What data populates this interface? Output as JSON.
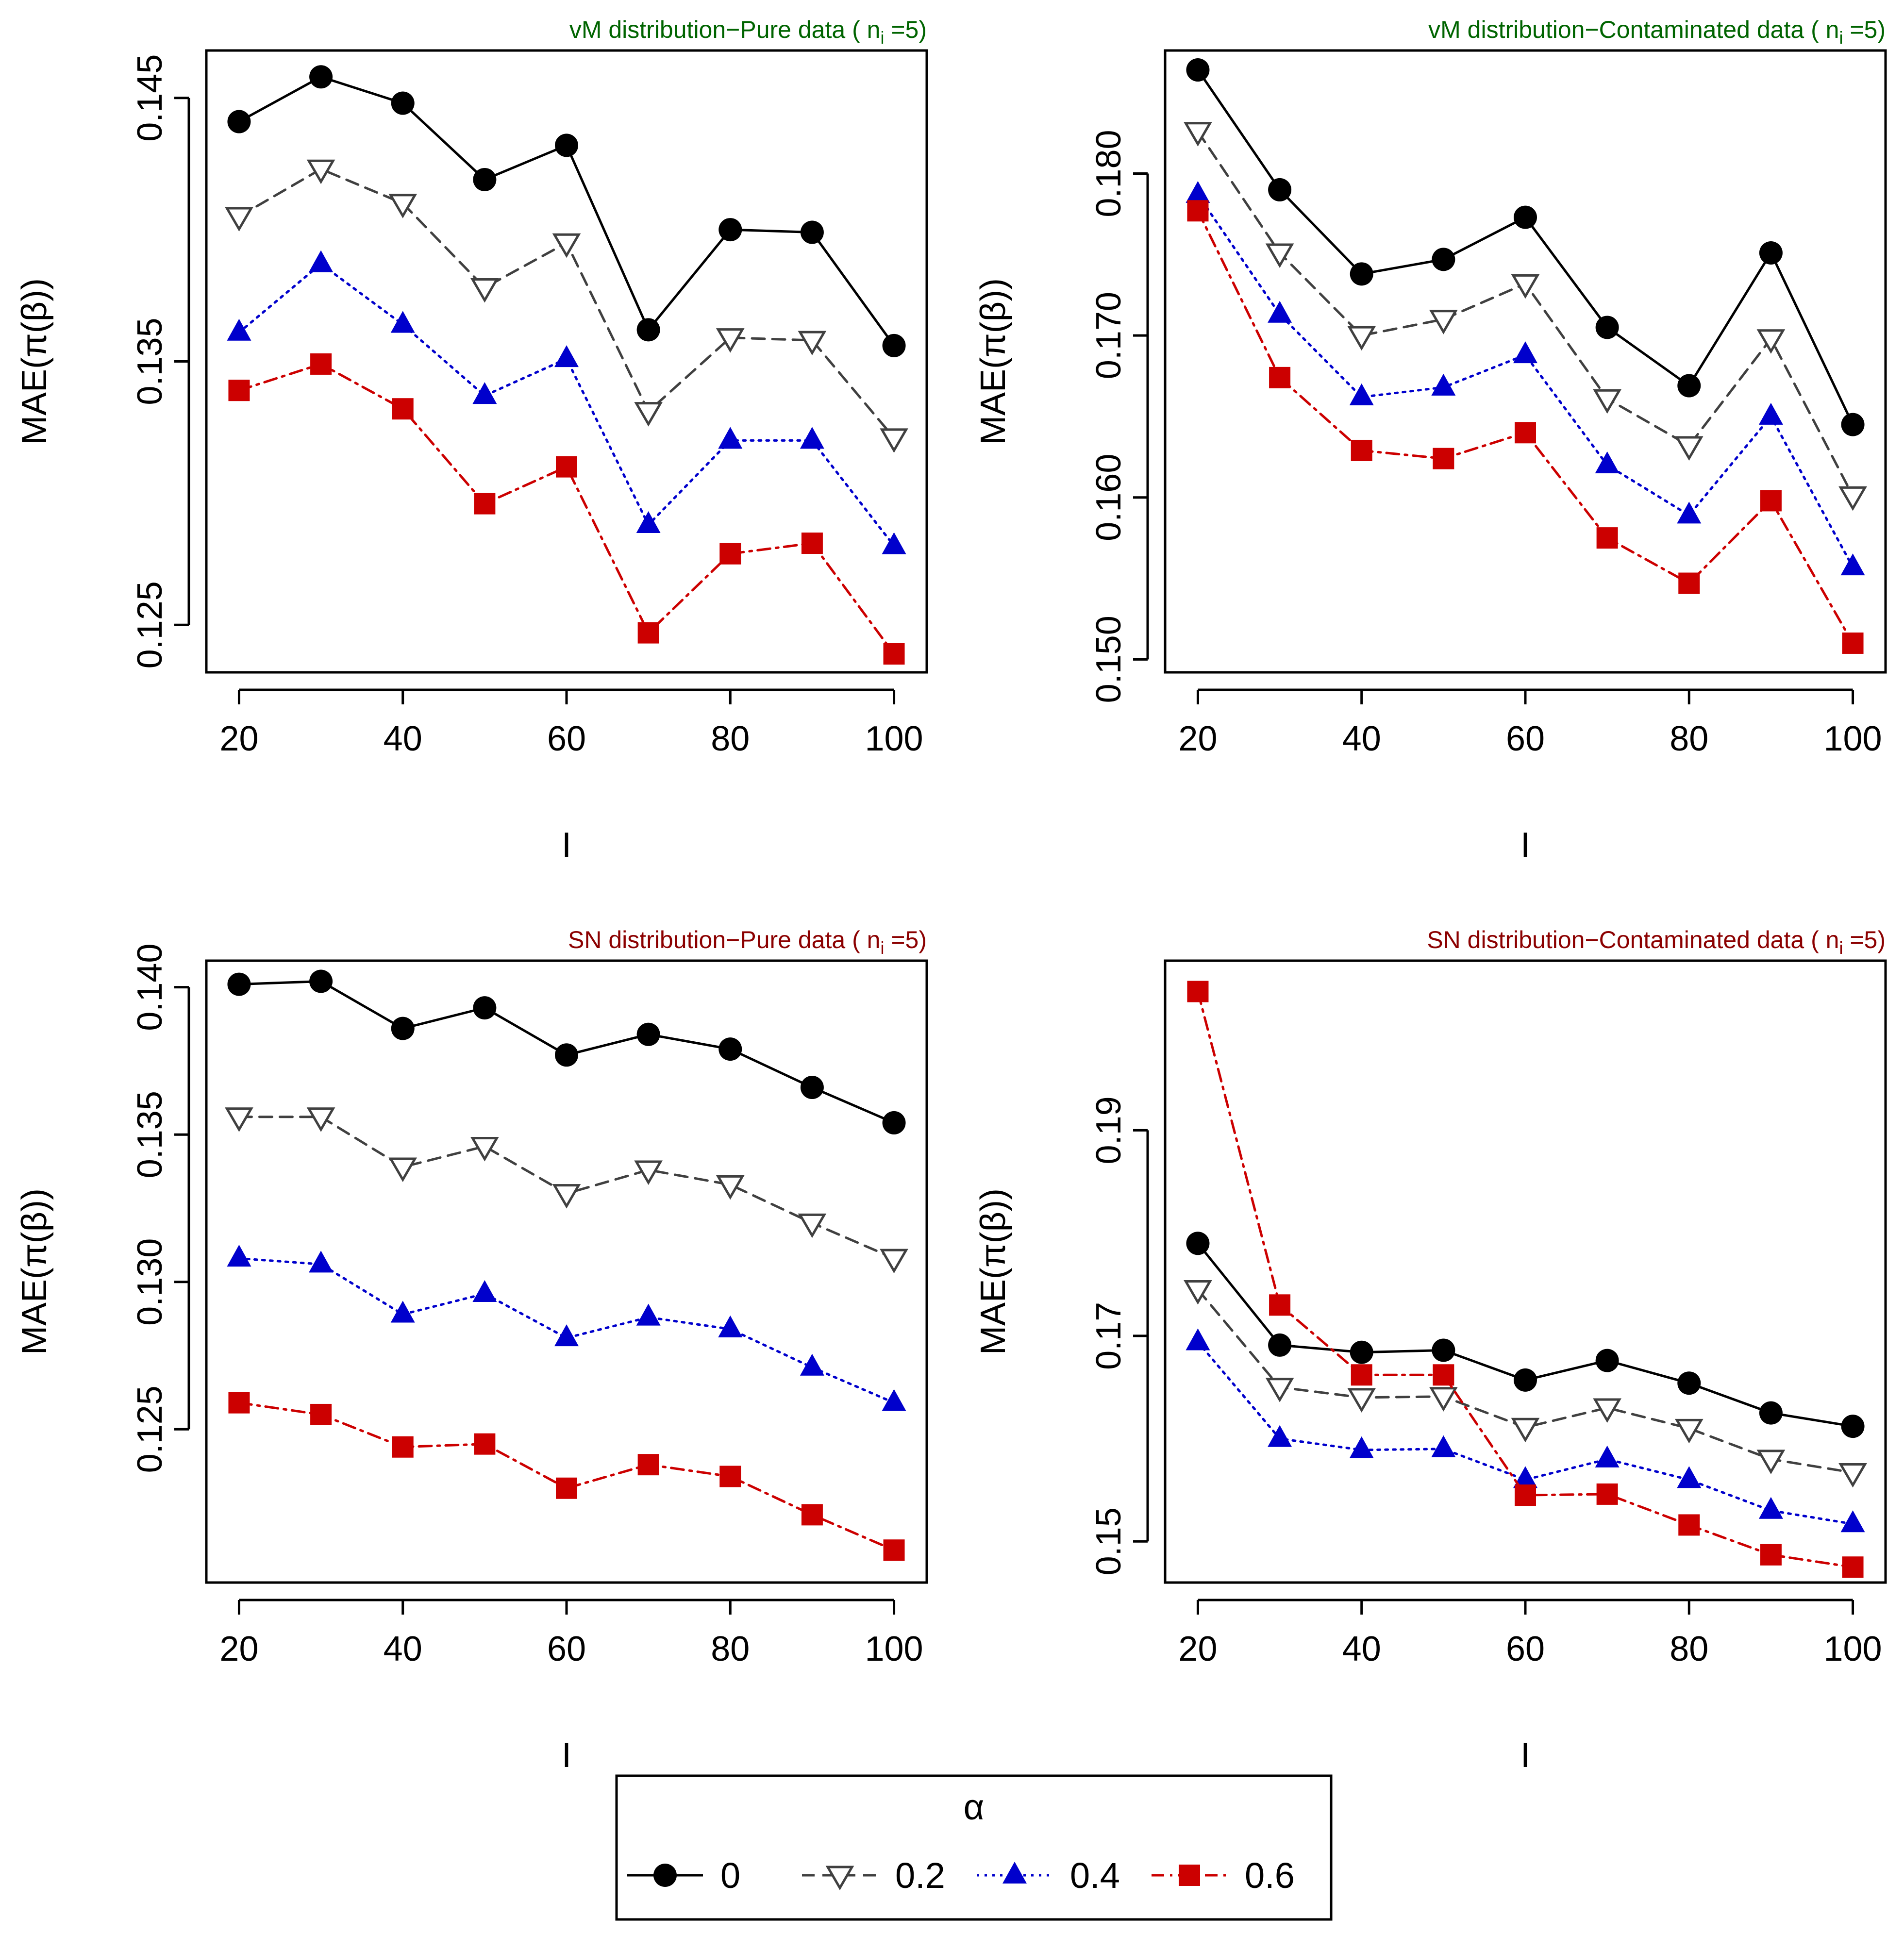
{
  "colors": {
    "series": [
      "#000000",
      "#404040",
      "#0000cc",
      "#cc0000"
    ],
    "title_vm": "#006400",
    "title_sn": "#8b0000"
  },
  "legend": {
    "title": "α",
    "labels": [
      "0",
      "0.2",
      "0.4",
      "0.6"
    ],
    "markers": [
      "circle",
      "triangle-down-open",
      "triangle-up",
      "square"
    ],
    "line_styles": [
      "solid",
      "dashed",
      "dotted",
      "dashdot"
    ]
  },
  "chart_data": [
    {
      "type": "line",
      "title_main": "vM distribution−Pure data ( n",
      "title_sub": "i",
      "title_tail": " =5)",
      "title_color_key": "title_vm",
      "xlabel": "I",
      "ylabel": "MAE(π(β))",
      "x": [
        20,
        30,
        40,
        50,
        60,
        70,
        80,
        90,
        100
      ],
      "xticks": [
        20,
        40,
        60,
        80,
        100
      ],
      "xlim": [
        16,
        104
      ],
      "yticks": [
        0.125,
        0.135,
        0.145
      ],
      "ytick_labels": [
        "0.125",
        "0.135",
        "0.145"
      ],
      "ylim": [
        0.1232,
        0.1468
      ],
      "series": [
        {
          "name": "0",
          "values": [
            0.1441,
            0.1458,
            0.1448,
            0.1419,
            0.1432,
            0.1362,
            0.14,
            0.1399,
            0.1356
          ]
        },
        {
          "name": "0.2",
          "values": [
            0.1405,
            0.1423,
            0.141,
            0.1378,
            0.1395,
            0.1331,
            0.1359,
            0.1358,
            0.1321
          ]
        },
        {
          "name": "0.4",
          "values": [
            0.1361,
            0.1387,
            0.1364,
            0.1337,
            0.1351,
            0.1288,
            0.132,
            0.132,
            0.128
          ]
        },
        {
          "name": "0.6",
          "values": [
            0.1339,
            0.1349,
            0.1332,
            0.1296,
            0.131,
            0.1247,
            0.1277,
            0.1281,
            0.1239
          ]
        }
      ]
    },
    {
      "type": "line",
      "title_main": "vM distribution−Contaminated data ( n",
      "title_sub": "i",
      "title_tail": " =5)",
      "title_color_key": "title_vm",
      "xlabel": "I",
      "ylabel": "MAE(π(β))",
      "x": [
        20,
        30,
        40,
        50,
        60,
        70,
        80,
        90,
        100
      ],
      "xticks": [
        20,
        40,
        60,
        80,
        100
      ],
      "xlim": [
        16,
        104
      ],
      "yticks": [
        0.15,
        0.16,
        0.17,
        0.18
      ],
      "ytick_labels": [
        "0.150",
        "0.160",
        "0.170",
        "0.180"
      ],
      "ylim": [
        0.1492,
        0.1876
      ],
      "series": [
        {
          "name": "0",
          "values": [
            0.1864,
            0.179,
            0.1738,
            0.1747,
            0.1773,
            0.1705,
            0.1669,
            0.1751,
            0.1645
          ]
        },
        {
          "name": "0.2",
          "values": [
            0.1826,
            0.1751,
            0.17,
            0.171,
            0.1732,
            0.1661,
            0.1632,
            0.1698,
            0.1601
          ]
        },
        {
          "name": "0.4",
          "values": [
            0.1787,
            0.1713,
            0.1662,
            0.1668,
            0.1688,
            0.162,
            0.1589,
            0.165,
            0.1557
          ]
        },
        {
          "name": "0.6",
          "values": [
            0.1777,
            0.1674,
            0.1629,
            0.1624,
            0.164,
            0.1575,
            0.1547,
            0.1598,
            0.151
          ]
        }
      ]
    },
    {
      "type": "line",
      "title_main": "SN distribution−Pure data ( n",
      "title_sub": "i",
      "title_tail": " =5)",
      "title_color_key": "title_sn",
      "xlabel": "I",
      "ylabel": "MAE(π(β))",
      "x": [
        20,
        30,
        40,
        50,
        60,
        70,
        80,
        90,
        100
      ],
      "xticks": [
        20,
        40,
        60,
        80,
        100
      ],
      "xlim": [
        16,
        104
      ],
      "yticks": [
        0.125,
        0.13,
        0.135,
        0.14
      ],
      "ytick_labels": [
        "0.125",
        "0.130",
        "0.135",
        "0.140"
      ],
      "ylim": [
        0.1198,
        0.1409
      ],
      "series": [
        {
          "name": "0",
          "values": [
            0.1401,
            0.1402,
            0.1386,
            0.1393,
            0.1377,
            0.1384,
            0.1379,
            0.1366,
            0.1354
          ]
        },
        {
          "name": "0.2",
          "values": [
            0.1356,
            0.1356,
            0.1339,
            0.1346,
            0.133,
            0.1338,
            0.1333,
            0.132,
            0.1308
          ]
        },
        {
          "name": "0.4",
          "values": [
            0.1308,
            0.1306,
            0.1289,
            0.1296,
            0.1281,
            0.1288,
            0.1284,
            0.1271,
            0.1259
          ]
        },
        {
          "name": "0.6",
          "values": [
            0.1259,
            0.1255,
            0.1244,
            0.1245,
            0.123,
            0.1238,
            0.1234,
            0.1221,
            0.1209
          ]
        }
      ]
    },
    {
      "type": "line",
      "title_main": "SN distribution−Contaminated data ( n",
      "title_sub": "i",
      "title_tail": " =5)",
      "title_color_key": "title_sn",
      "xlabel": "I",
      "ylabel": "MAE(π(β))",
      "x": [
        20,
        30,
        40,
        50,
        60,
        70,
        80,
        90,
        100
      ],
      "xticks": [
        20,
        40,
        60,
        80,
        100
      ],
      "xlim": [
        16,
        104
      ],
      "yticks": [
        0.15,
        0.17,
        0.19
      ],
      "ytick_labels": [
        "0.15",
        "0.17",
        "0.19"
      ],
      "ylim": [
        0.146,
        0.2065
      ],
      "series": [
        {
          "name": "0",
          "values": [
            0.179,
            0.1691,
            0.1684,
            0.1686,
            0.1657,
            0.1676,
            0.1654,
            0.1625,
            0.1612
          ]
        },
        {
          "name": "0.2",
          "values": [
            0.1745,
            0.165,
            0.164,
            0.1641,
            0.1611,
            0.163,
            0.161,
            0.158,
            0.1567
          ]
        },
        {
          "name": "0.4",
          "values": [
            0.1694,
            0.16,
            0.1589,
            0.159,
            0.156,
            0.158,
            0.156,
            0.153,
            0.1517
          ]
        },
        {
          "name": "0.6",
          "values": [
            0.2035,
            0.173,
            0.1662,
            0.1662,
            0.1545,
            0.1546,
            0.1516,
            0.1487,
            0.1475
          ]
        }
      ]
    }
  ]
}
